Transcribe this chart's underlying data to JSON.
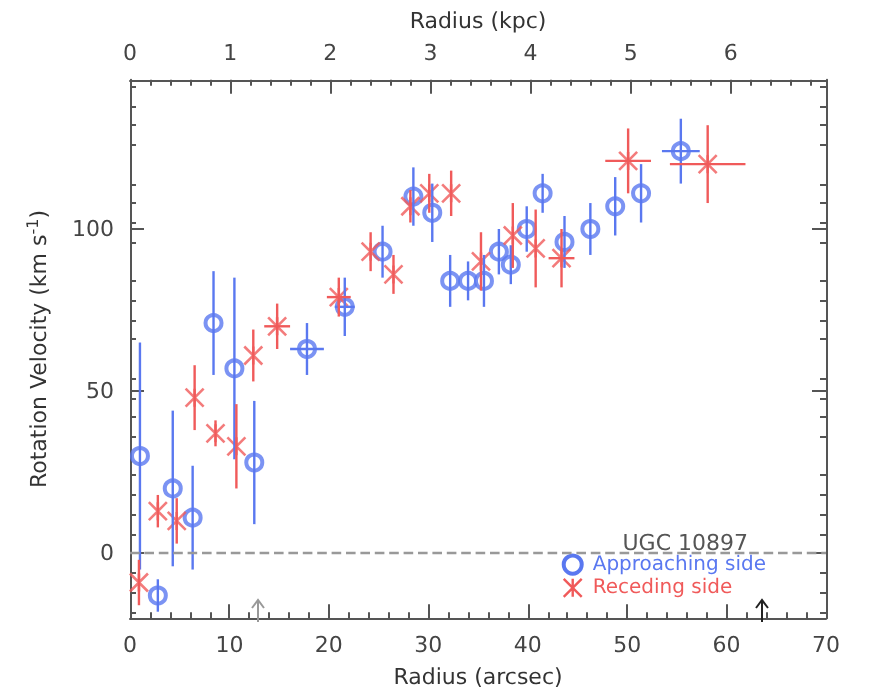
{
  "chart_data": {
    "type": "scatter",
    "xlabel": "Radius (arcsec)",
    "x2label": "Radius (kpc)",
    "ylabel": "Rotation Velocity (km s$^{-1}$)",
    "xlim": [
      0,
      70
    ],
    "xticks": [
      0,
      10,
      20,
      30,
      40,
      50,
      60,
      70
    ],
    "x2lim": [
      0,
      6.95
    ],
    "x2ticks": [
      0,
      1,
      2,
      3,
      4,
      5,
      6
    ],
    "ylim": [
      -20,
      146
    ],
    "yticks": [
      0,
      50,
      100
    ],
    "grid": false,
    "legend": "bottom right",
    "legend_title": "UGC 10897",
    "ref_lines": [
      {
        "axis": "y",
        "value": 0,
        "color": "#999999",
        "line_style": "dashed"
      }
    ],
    "series": [
      {
        "name": "Approaching side",
        "color": "#5a78f0",
        "marker": "circle",
        "x": [
          1.0,
          2.8,
          4.3,
          6.3,
          8.4,
          10.5,
          12.5,
          17.8,
          21.6,
          25.4,
          28.5,
          30.4,
          32.2,
          34.0,
          35.6,
          37.1,
          38.3,
          39.9,
          41.5,
          43.7,
          46.3,
          48.8,
          51.4,
          55.4
        ],
        "values": [
          30,
          -13,
          20,
          11,
          71,
          57,
          28,
          63,
          76,
          93,
          110,
          105,
          84,
          84,
          84,
          93,
          89,
          100,
          111,
          96,
          100,
          107,
          111,
          124
        ],
        "errors": [
          35,
          5,
          24,
          16,
          16,
          28,
          19,
          8,
          9,
          8,
          9,
          9,
          8,
          6,
          8,
          7,
          6,
          7,
          6,
          8,
          8,
          9,
          9,
          10
        ],
        "xerrors": [
          null,
          null,
          null,
          null,
          null,
          null,
          null,
          1.7,
          1,
          null,
          null,
          null,
          null,
          null,
          null,
          null,
          null,
          null,
          null,
          null,
          null,
          null,
          null,
          1.9
        ]
      },
      {
        "name": "Receding side",
        "color": "#f05a5a",
        "marker": "cross",
        "x": [
          0.9,
          2.8,
          4.7,
          6.5,
          8.6,
          10.7,
          12.4,
          14.8,
          21.0,
          24.2,
          26.5,
          28.2,
          30.1,
          32.3,
          35.3,
          38.5,
          40.8,
          43.4,
          50.1,
          58.1
        ],
        "values": [
          -9,
          13,
          10,
          48,
          37,
          33,
          61,
          70,
          79,
          93,
          86,
          107,
          111,
          111,
          90,
          98,
          94,
          91,
          121,
          120
        ],
        "errors": [
          7,
          5,
          7,
          10,
          4,
          13,
          8,
          7,
          6,
          6,
          6,
          5,
          6,
          7,
          9,
          10,
          12,
          9,
          10,
          12
        ],
        "xerrors": [
          null,
          null,
          null,
          null,
          null,
          null,
          null,
          1.3,
          1.2,
          null,
          null,
          null,
          null,
          null,
          null,
          null,
          null,
          1.3,
          2.3,
          3.8
        ]
      }
    ]
  }
}
